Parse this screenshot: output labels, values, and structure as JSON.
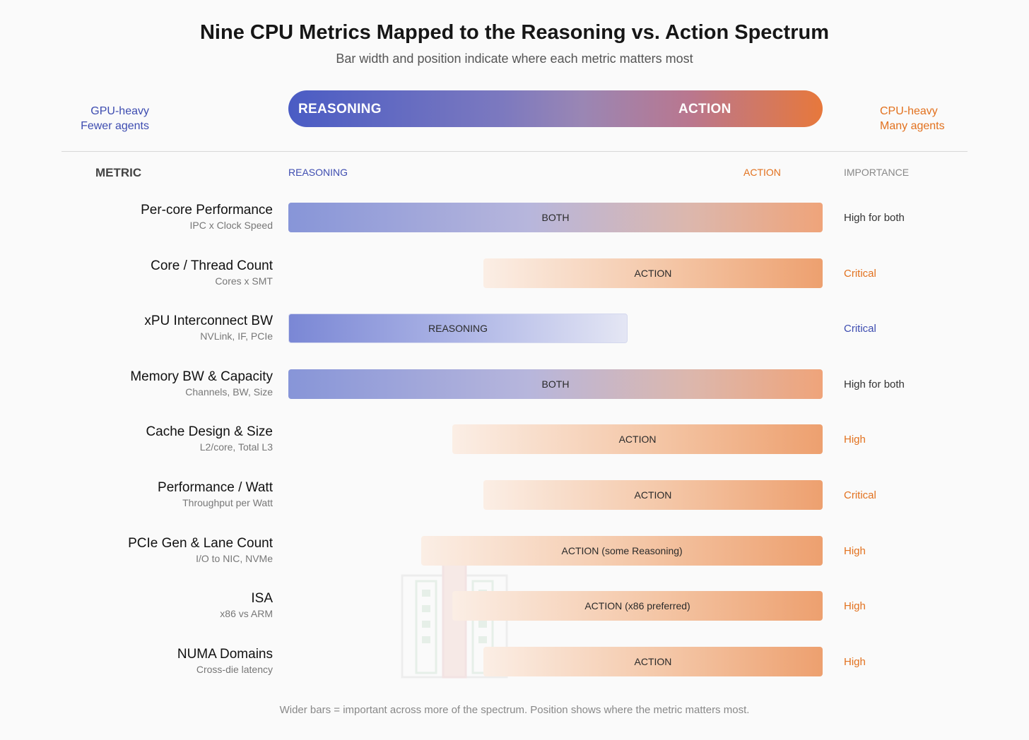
{
  "title": "Nine CPU Metrics Mapped to the Reasoning vs. Action Spectrum",
  "subtitle": "Bar width and position indicate where each metric matters most",
  "left_side": {
    "line1": "GPU-heavy",
    "line2": "Fewer agents"
  },
  "right_side": {
    "line1": "CPU-heavy",
    "line2": "Many agents"
  },
  "spectrum": {
    "left_label": "REASONING",
    "right_label": "ACTION"
  },
  "headers": {
    "metric": "METRIC",
    "reasoning": "REASONING",
    "action": "ACTION",
    "importance": "IMPORTANCE"
  },
  "colors": {
    "reasoning": "#3d4cb0",
    "action": "#e2711e",
    "neutral": "#333333"
  },
  "metrics": [
    {
      "name": "Per-core Performance",
      "sub": "IPC x Clock Speed",
      "band": "both",
      "label": "BOTH",
      "start": 0.0,
      "end": 1.0,
      "importance": "High for both",
      "importance_color": "neutral"
    },
    {
      "name": "Core / Thread Count",
      "sub": "Cores x SMT",
      "band": "action",
      "label": "ACTION",
      "start": 0.365,
      "end": 1.0,
      "importance": "Critical",
      "importance_color": "orange"
    },
    {
      "name": "xPU Interconnect BW",
      "sub": "NVLink, IF, PCIe",
      "band": "reasoning",
      "label": "REASONING",
      "start": 0.0,
      "end": 0.635,
      "importance": "Critical",
      "importance_color": "blue"
    },
    {
      "name": "Memory BW & Capacity",
      "sub": "Channels, BW, Size",
      "band": "both",
      "label": "BOTH",
      "start": 0.0,
      "end": 1.0,
      "importance": "High for both",
      "importance_color": "neutral"
    },
    {
      "name": "Cache Design & Size",
      "sub": "L2/core, Total L3",
      "band": "action",
      "label": "ACTION",
      "start": 0.307,
      "end": 1.0,
      "importance": "High",
      "importance_color": "orange"
    },
    {
      "name": "Performance / Watt",
      "sub": "Throughput per Watt",
      "band": "action",
      "label": "ACTION",
      "start": 0.365,
      "end": 1.0,
      "importance": "Critical",
      "importance_color": "orange"
    },
    {
      "name": "PCIe Gen & Lane Count",
      "sub": "I/O to NIC, NVMe",
      "band": "action",
      "label": "ACTION (some Reasoning)",
      "start": 0.249,
      "end": 1.0,
      "importance": "High",
      "importance_color": "orange"
    },
    {
      "name": "ISA",
      "sub": "x86 vs ARM",
      "band": "action",
      "label": "ACTION (x86 preferred)",
      "start": 0.307,
      "end": 1.0,
      "importance": "High",
      "importance_color": "orange"
    },
    {
      "name": "NUMA Domains",
      "sub": "Cross-die latency",
      "band": "action",
      "label": "ACTION",
      "start": 0.365,
      "end": 1.0,
      "importance": "High",
      "importance_color": "orange"
    }
  ],
  "footer": "Wider bars = important across more of the spectrum. Position shows where the metric matters most."
}
